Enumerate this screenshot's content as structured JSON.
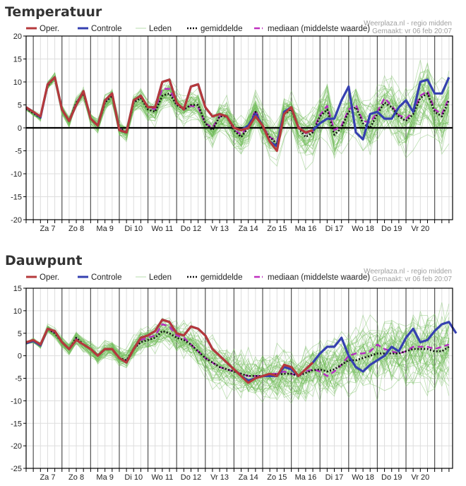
{
  "panels": [
    {
      "title": "Temperatuur",
      "credit_line1": "Weerplaza.nl - regio midden",
      "credit_line2": "Gemaakt: vr 06 feb 20:07"
    },
    {
      "title": "Dauwpunt",
      "credit_line1": "Weerplaza.nl - regio midden",
      "credit_line2": "Gemaakt: vr 06 feb 20:07"
    }
  ],
  "legend": [
    {
      "key": "oper",
      "label": "Oper.",
      "color": "#b5393b",
      "style": "solid-thick"
    },
    {
      "key": "controle",
      "label": "Controle",
      "color": "#3540b0",
      "style": "solid-thick"
    },
    {
      "key": "leden",
      "label": "Leden",
      "color": "#7cc06a",
      "style": "thin"
    },
    {
      "key": "gemiddelde",
      "label": "gemiddelde",
      "color": "#111111",
      "style": "dotted"
    },
    {
      "key": "mediaan",
      "label": "mediaan (middelste waarde)",
      "color": "#c030c0",
      "style": "dashed"
    }
  ],
  "colors": {
    "oper": "#b5393b",
    "controle": "#3540b0",
    "leden": "#6dbb55",
    "gemiddelde": "#111111",
    "mediaan": "#b52cc0",
    "grid": "#dddddd",
    "day_line": "#555555"
  },
  "chart_data": [
    {
      "type": "line",
      "title": "Temperatuur",
      "xlabel": "",
      "ylabel": "",
      "ylim": [
        -20,
        20
      ],
      "yticks": [
        20,
        15,
        10,
        5,
        0,
        -5,
        -10,
        -15,
        -20
      ],
      "day_labels": [
        "Za 7",
        "Zo 8",
        "Ma 9",
        "Di 10",
        "Wo 11",
        "Do 12",
        "Vr 13",
        "Za 14",
        "Zo 15",
        "Ma 16",
        "Di 17",
        "Wo 18",
        "Do 19",
        "Vr 20"
      ],
      "steps_per_day": 4,
      "grid": true,
      "zero_line": true,
      "legend_position": "top",
      "series": [
        {
          "name": "Oper.",
          "values": [
            4.5,
            3.5,
            2.5,
            9.5,
            11,
            4,
            1.5,
            5,
            8,
            2,
            0.5,
            6,
            7.5,
            -0.5,
            -1,
            6,
            7,
            4.5,
            4.5,
            10,
            10.5,
            5.5,
            4,
            9,
            9.5,
            4.5,
            2.5,
            3,
            2.5,
            0,
            -0.5,
            0,
            2.5,
            0.5,
            -3,
            -5,
            3,
            4.5,
            0,
            -1,
            -0.5,
            null
          ]
        },
        {
          "name": "Controle",
          "values": [
            4.5,
            3.5,
            2.3,
            9.5,
            11,
            4,
            1.5,
            5,
            8,
            2,
            0.5,
            6,
            7.5,
            -0.5,
            -1,
            6,
            7,
            4.5,
            4.5,
            10,
            10.5,
            5.5,
            4,
            9,
            9.5,
            4.5,
            2.5,
            3,
            2.5,
            0,
            -0.5,
            0.5,
            3,
            0.5,
            -3,
            -4,
            3.5,
            4.5,
            0,
            -1,
            -0.5,
            1,
            2,
            2,
            6,
            9,
            -1,
            -2.5,
            3,
            3.5,
            2,
            2,
            4.5,
            6,
            3.5,
            10,
            10.5,
            7.5,
            7.5,
            11
          ]
        },
        {
          "name": "gemiddelde",
          "values": [
            4.2,
            3.2,
            2.2,
            9.2,
            11,
            4,
            1.5,
            5.5,
            7.5,
            2,
            0.5,
            5.5,
            7,
            0,
            -1,
            5.5,
            6.5,
            4,
            3.5,
            7,
            7.5,
            5,
            4,
            5,
            5,
            1,
            -0.5,
            2.5,
            2.5,
            -0.5,
            -2,
            0,
            3.5,
            0,
            -2,
            -3.5,
            3,
            4,
            0,
            -2,
            -1,
            2.5,
            4,
            -1.5,
            0,
            3.5,
            4.5,
            1,
            0,
            3,
            5.5,
            4.5,
            2.5,
            1.5,
            3,
            6.5,
            7.5,
            3.5,
            2.5,
            6
          ]
        },
        {
          "name": "mediaan (middelste waarde)",
          "values": [
            4.3,
            3.3,
            2.3,
            9.3,
            11,
            4,
            1.5,
            5.5,
            7.8,
            2,
            0.5,
            5.8,
            7.2,
            -0.2,
            -1,
            5.8,
            6.8,
            4.5,
            4,
            8.5,
            8.5,
            5.2,
            4,
            4.8,
            4.5,
            1,
            0,
            2.5,
            2.5,
            -0.3,
            -1.5,
            0.3,
            3.8,
            0.3,
            -2,
            -3,
            3.2,
            4.2,
            0.3,
            -1.2,
            -0.8,
            2.8,
            4.8,
            -0.5,
            0.5,
            4,
            5,
            1.5,
            1.2,
            3.5,
            6.5,
            4.8,
            2.8,
            2,
            3.5,
            7,
            8,
            4,
            3,
            6.5
          ]
        }
      ]
    },
    {
      "type": "line",
      "title": "Dauwpunt",
      "xlabel": "",
      "ylabel": "",
      "ylim": [
        -25,
        15
      ],
      "yticks": [
        15,
        10,
        5,
        0,
        -5,
        -10,
        -15,
        -20,
        -25
      ],
      "day_labels": [
        "Za 7",
        "Zo 8",
        "Ma 9",
        "Di 10",
        "Wo 11",
        "Do 12",
        "Vr 13",
        "Za 14",
        "Zo 15",
        "Ma 16",
        "Di 17",
        "Wo 18",
        "Do 19",
        "Vr 20"
      ],
      "steps_per_day": 4,
      "grid": true,
      "zero_line": false,
      "legend_position": "top",
      "series": [
        {
          "name": "Oper.",
          "values": [
            3,
            3.5,
            2.5,
            6,
            5.5,
            3,
            1.5,
            3.5,
            2.5,
            1.5,
            0,
            1.5,
            1.5,
            -0.5,
            -1.5,
            1.5,
            4,
            4.5,
            5.5,
            8,
            7.5,
            5,
            4.5,
            6.5,
            6,
            4.5,
            1.5,
            0,
            -1.5,
            -3,
            -4.5,
            -6,
            -5,
            -4.5,
            -4,
            -4.5,
            -2,
            -2.5,
            -4.5,
            -3,
            -1.5,
            null
          ]
        },
        {
          "name": "Controle",
          "values": [
            2.8,
            3.3,
            2.3,
            6,
            5.5,
            3,
            1.5,
            3.5,
            2.5,
            1.5,
            0,
            1.5,
            1.5,
            -0.5,
            -1.5,
            1.5,
            4,
            4.5,
            5.5,
            8,
            7.5,
            5,
            4.5,
            6.5,
            6,
            4.5,
            1.5,
            0,
            -1.5,
            -3,
            -4.5,
            -5.5,
            -5,
            -4.5,
            -4.5,
            -4.5,
            -2.5,
            -3,
            -4.5,
            -3,
            -1.5,
            0.5,
            2,
            2,
            4,
            0,
            -2.5,
            -3.5,
            -2,
            -1,
            0,
            2,
            1,
            4,
            6,
            3,
            3.5,
            5.5,
            7,
            7.5,
            5
          ]
        },
        {
          "name": "gemiddelde",
          "values": [
            2.8,
            3.3,
            2.3,
            6,
            5,
            3,
            1.5,
            4,
            2.5,
            1.5,
            0,
            1.5,
            1.5,
            -0.5,
            -1,
            1.5,
            3,
            3.5,
            4,
            5.5,
            5,
            4,
            3.5,
            2.5,
            1,
            -0.5,
            -1.5,
            -2.5,
            -3,
            -3.5,
            -4,
            -4.5,
            -4.5,
            -4.5,
            -4.2,
            -4.2,
            -4,
            -4,
            -4.5,
            -3.8,
            -3.2,
            -3,
            -3.5,
            -3,
            -2,
            -1,
            -1,
            -0.5,
            0,
            0.5,
            0.5,
            0.5,
            0.5,
            1,
            1.5,
            1.5,
            1.5,
            1,
            1,
            2
          ]
        },
        {
          "name": "mediaan (middelste waarde)",
          "values": [
            2.9,
            3.4,
            2.4,
            6,
            5.2,
            3,
            1.5,
            3.8,
            2.5,
            1.5,
            0,
            1.5,
            1.5,
            -0.5,
            -1.2,
            1.5,
            3.5,
            4,
            4.5,
            7,
            6.5,
            4.5,
            4,
            2.5,
            1,
            -0.5,
            -1.5,
            -2.5,
            -3,
            -3.5,
            -4,
            -4.5,
            -4.5,
            -4.5,
            -4,
            -4,
            -3.5,
            -4,
            -4.5,
            -3.5,
            -3,
            -3.5,
            -4.5,
            -3.5,
            -2,
            0,
            0.5,
            0.5,
            1,
            2.5,
            1.5,
            1,
            0.5,
            1,
            2,
            2,
            2,
            1.5,
            2,
            2.5
          ]
        }
      ]
    }
  ]
}
